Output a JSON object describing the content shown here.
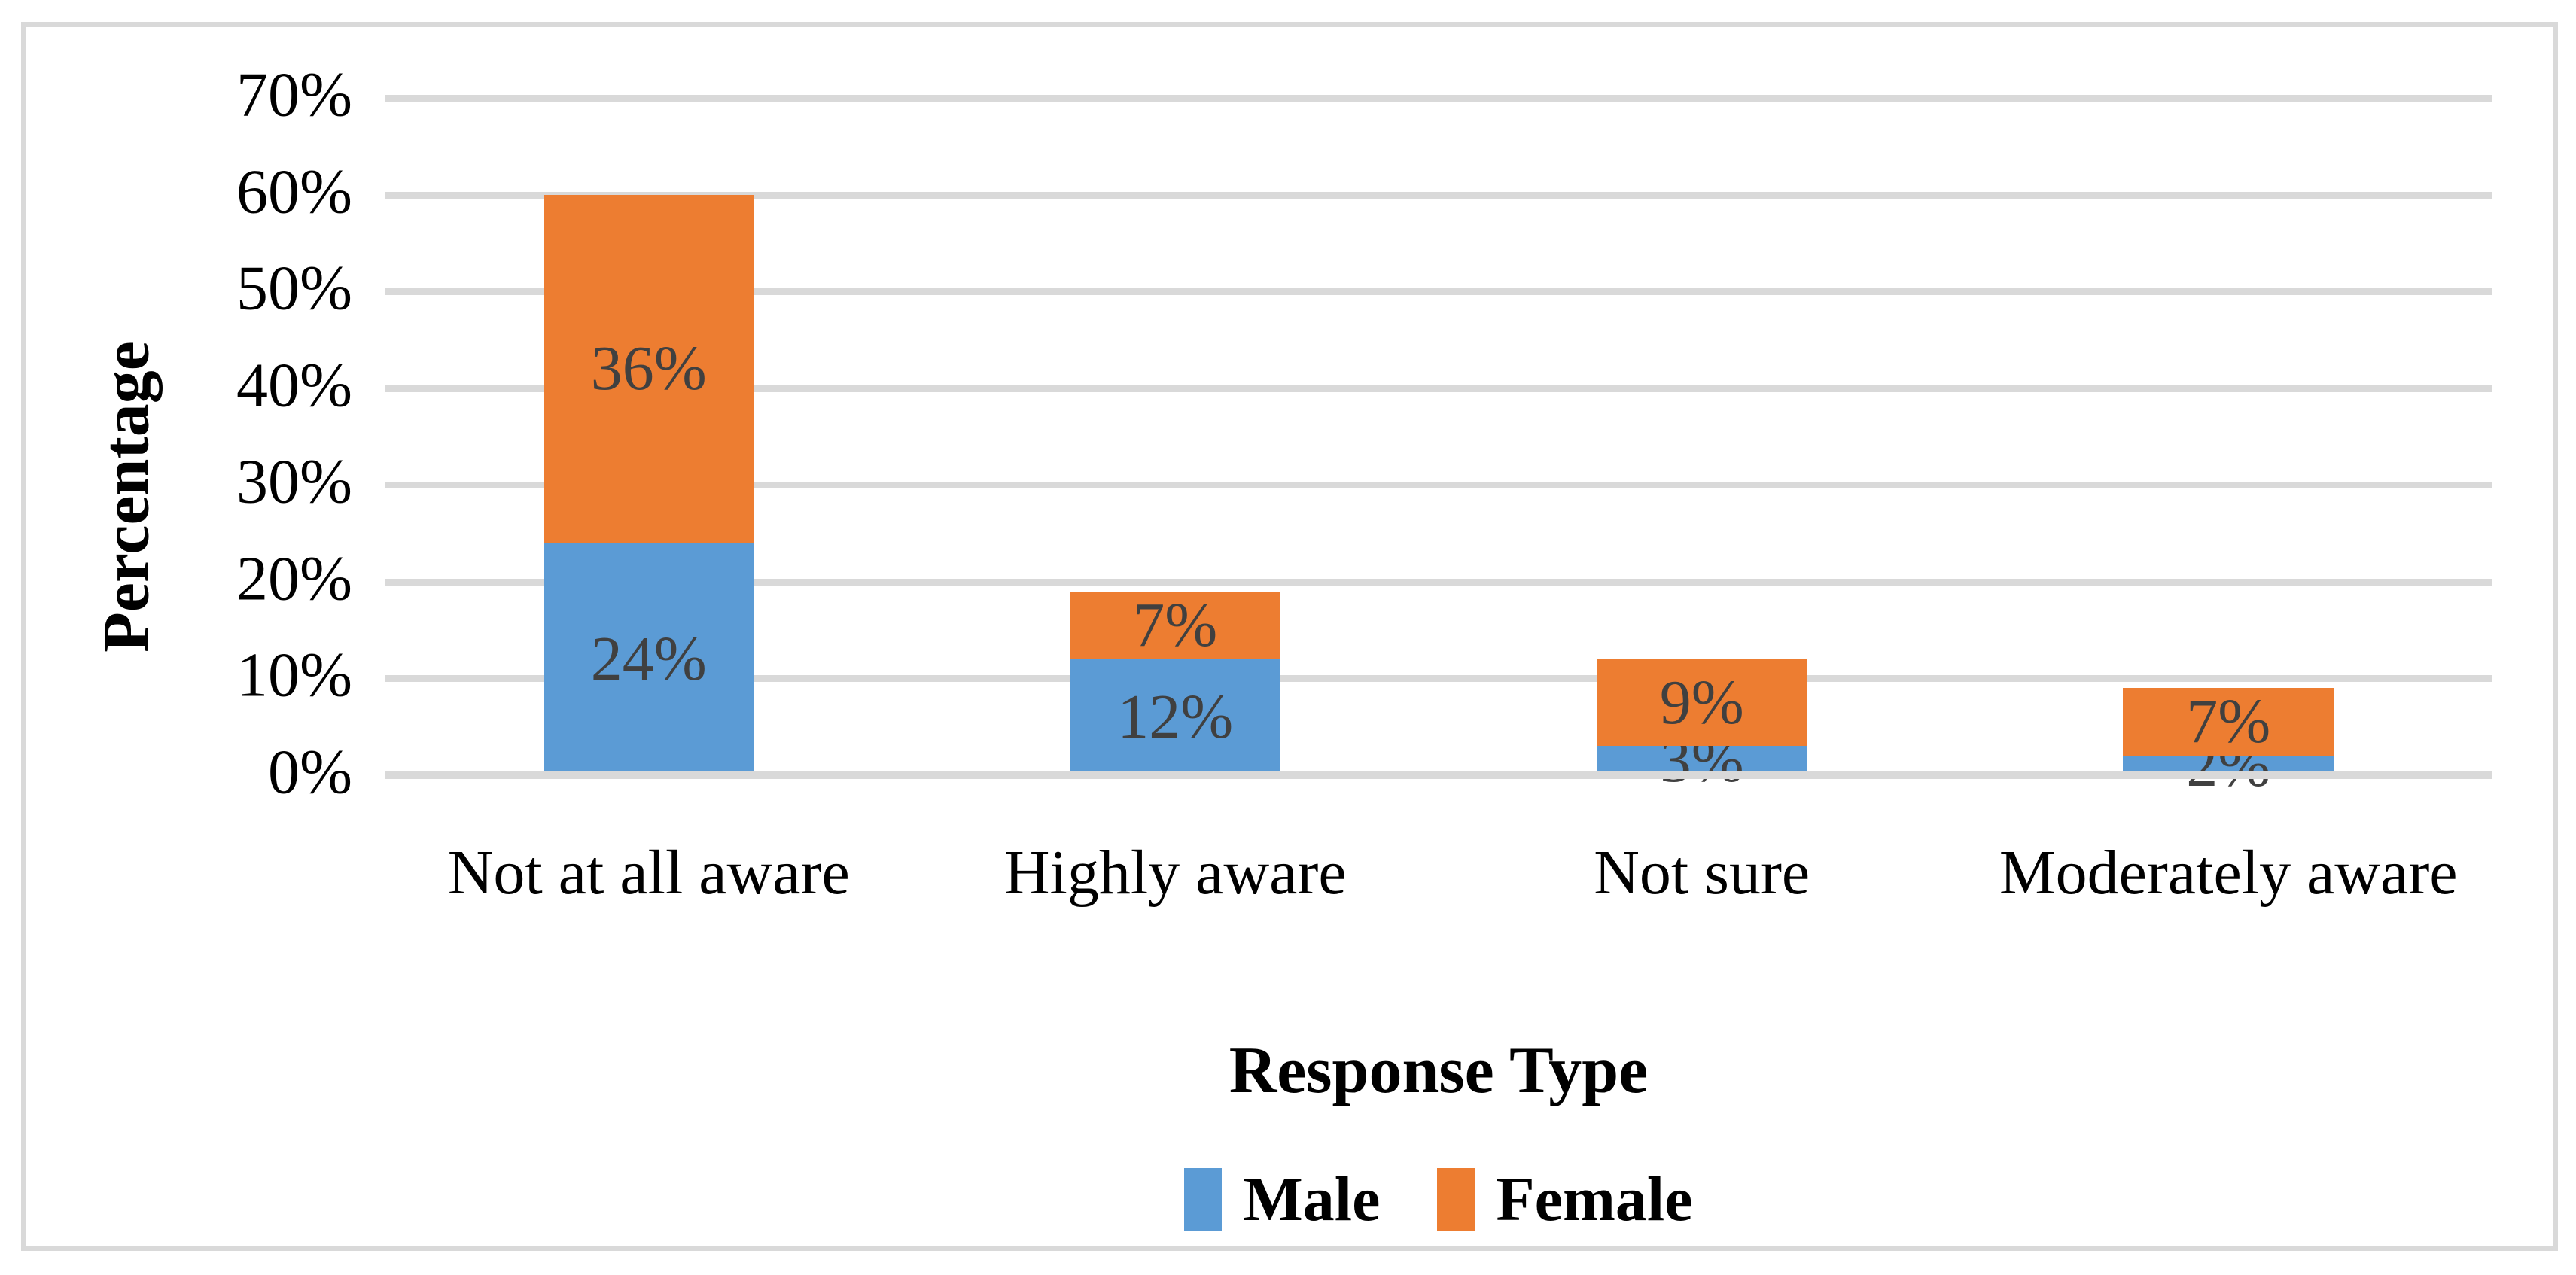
{
  "chart_data": {
    "type": "bar",
    "stacked": true,
    "xlabel": "Response Type",
    "ylabel": "Percentage",
    "categories": [
      "Not at all aware",
      "Highly aware",
      "Not sure",
      "Moderately aware"
    ],
    "series": [
      {
        "name": "Male",
        "color": "#5B9BD5",
        "values": [
          24,
          12,
          3,
          2
        ],
        "data_labels": [
          "24%",
          "12%",
          "3%",
          "2%"
        ]
      },
      {
        "name": "Female",
        "color": "#ED7D31",
        "values": [
          36,
          7,
          9,
          7
        ],
        "data_labels": [
          "36%",
          "7%",
          "9%",
          "7%"
        ]
      }
    ],
    "ylim": [
      0,
      70
    ],
    "ytick_interval": 10,
    "ytick_labels": [
      "0%",
      "10%",
      "20%",
      "30%",
      "40%",
      "50%",
      "60%",
      "70%"
    ],
    "grid": true,
    "legend_position": "bottom",
    "legend_labels": [
      "Male",
      "Female"
    ]
  },
  "style": {
    "background": "#FFFFFF",
    "frame_border_color": "#D9D9D9",
    "gridline_color": "#D9D9D9",
    "axis_text_color": "#000000",
    "data_label_color": "#404040",
    "male_color": "#5B9BD5",
    "female_color": "#ED7D31"
  }
}
